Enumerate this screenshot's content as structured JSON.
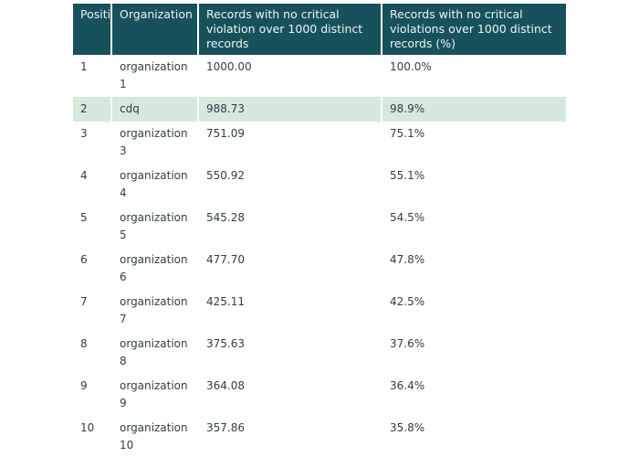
{
  "colors": {
    "header_bg": "#17525c",
    "header_text": "#f0f2f1",
    "body_text": "#323e48",
    "highlight_bg": "#d5e9dd",
    "page_bg": "#ffffff"
  },
  "chart_data": {
    "type": "table",
    "title": "",
    "columns": [
      {
        "id": "position",
        "label": "Position"
      },
      {
        "id": "organization",
        "label": "Organization"
      },
      {
        "id": "records",
        "label": "Records with no critical violation over 1000 distinct records"
      },
      {
        "id": "percent",
        "label": "Records with no critical violations over 1000 distinct records (%)"
      }
    ],
    "rows": [
      {
        "position": "1",
        "organization": "organization 1",
        "records": "1000.00",
        "percent": "100.0%",
        "highlighted": false
      },
      {
        "position": "2",
        "organization": "cdq",
        "records": "988.73",
        "percent": "98.9%",
        "highlighted": true
      },
      {
        "position": "3",
        "organization": "organization 3",
        "records": "751.09",
        "percent": "75.1%",
        "highlighted": false
      },
      {
        "position": "4",
        "organization": "organization 4",
        "records": "550.92",
        "percent": "55.1%",
        "highlighted": false
      },
      {
        "position": "5",
        "organization": "organization 5",
        "records": "545.28",
        "percent": "54.5%",
        "highlighted": false
      },
      {
        "position": "6",
        "organization": "organization 6",
        "records": "477.70",
        "percent": "47.8%",
        "highlighted": false
      },
      {
        "position": "7",
        "organization": "organization 7",
        "records": "425.11",
        "percent": "42.5%",
        "highlighted": false
      },
      {
        "position": "8",
        "organization": "organization 8",
        "records": "375.63",
        "percent": "37.6%",
        "highlighted": false
      },
      {
        "position": "9",
        "organization": "organization 9",
        "records": "364.08",
        "percent": "36.4%",
        "highlighted": false
      },
      {
        "position": "10",
        "organization": "organization 10",
        "records": "357.86",
        "percent": "35.8%",
        "highlighted": false
      }
    ],
    "legend": null,
    "grid": false,
    "highlighted_row": "cdq"
  }
}
